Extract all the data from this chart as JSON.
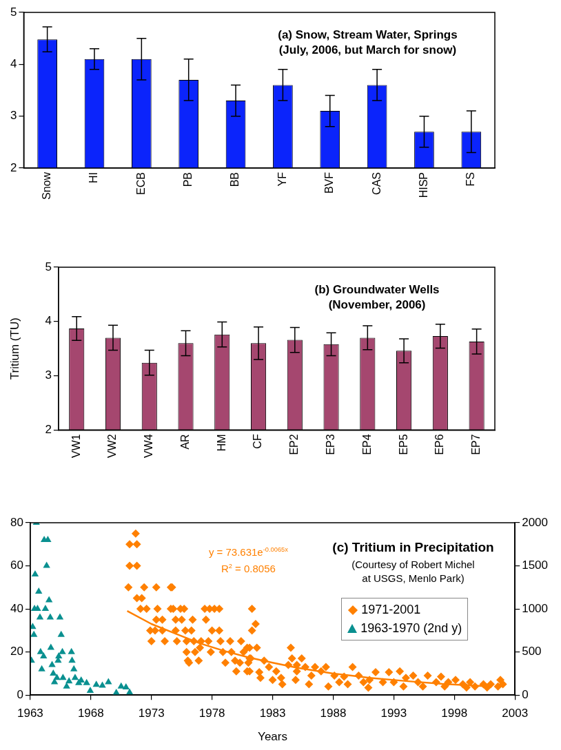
{
  "chart_data": [
    {
      "type": "bar",
      "title": "(a) Snow, Stream Water, Springs\n(July, 2006, but March for snow)",
      "categories": [
        "Snow",
        "HI",
        "ECB",
        "PB",
        "BB",
        "YF",
        "BVF",
        "CAS",
        "HISP",
        "FS"
      ],
      "values": [
        4.48,
        4.1,
        4.1,
        3.7,
        3.3,
        3.6,
        3.1,
        3.6,
        2.7,
        2.7
      ],
      "errors": [
        0.24,
        0.2,
        0.4,
        0.4,
        0.3,
        0.3,
        0.3,
        0.3,
        0.3,
        0.4
      ],
      "color": "#0b24fb",
      "ylim": [
        2,
        5
      ],
      "yticks": [
        2,
        3,
        4,
        5
      ],
      "grid": false
    },
    {
      "type": "bar",
      "title": "(b) Groundwater Wells\n(November, 2006)",
      "ylabel": "Tritium (TU)",
      "categories": [
        "VW1",
        "VW2",
        "VW4",
        "AR",
        "HM",
        "CF",
        "EP2",
        "EP3",
        "EP4",
        "EP5",
        "EP6",
        "EP7"
      ],
      "values": [
        3.87,
        3.7,
        3.24,
        3.6,
        3.76,
        3.6,
        3.66,
        3.58,
        3.7,
        3.46,
        3.73,
        3.63
      ],
      "errors": [
        0.22,
        0.23,
        0.23,
        0.23,
        0.23,
        0.3,
        0.23,
        0.21,
        0.22,
        0.22,
        0.22,
        0.23
      ],
      "color": "#a5476f",
      "ylim": [
        2,
        5
      ],
      "yticks": [
        2,
        3,
        4,
        5
      ],
      "grid": false
    },
    {
      "type": "scatter",
      "title": "(c) Tritium in Precipitation",
      "subtitle": "(Courtesy of Robert Michel\nat USGS, Menlo Park)",
      "xlabel": "Years",
      "annotations": [
        "y = 73.631e$^{-0.0065x}$",
        "R$^{2}$ = 0.8056"
      ],
      "xlim": [
        1963,
        2003
      ],
      "xticks": [
        1963,
        1968,
        1973,
        1978,
        1983,
        1988,
        1993,
        1998,
        2003
      ],
      "ylim": [
        0,
        80
      ],
      "yticks": [
        0,
        20,
        40,
        60,
        80
      ],
      "y2lim": [
        0,
        2000
      ],
      "y2ticks": [
        0,
        500,
        1000,
        1500,
        2000
      ],
      "grid": false,
      "legend": "right",
      "series": [
        {
          "name": "1971-2001",
          "color": "#ff8000",
          "marker": "diamond",
          "x": [
            1971.1,
            1971.2,
            1971.2,
            1971.7,
            1971.8,
            1971.8,
            1971.8,
            1972.2,
            1972.1,
            1972.6,
            1972.4,
            1972.9,
            1973.0,
            1973.3,
            1973.4,
            1973.4,
            1973.5,
            1973.9,
            1973.9,
            1974.1,
            1974.6,
            1974.6,
            1974.7,
            1974.8,
            1975.0,
            1975.0,
            1975.1,
            1975.4,
            1975.7,
            1975.5,
            1975.8,
            1975.9,
            1975.9,
            1976.0,
            1976.1,
            1976.3,
            1976.4,
            1976.5,
            1976.6,
            1976.9,
            1977.0,
            1977.1,
            1977.4,
            1977.5,
            1977.7,
            1977.9,
            1977.8,
            1978.2,
            1978.6,
            1978.6,
            1978.0,
            1978.7,
            1978.9,
            1979.1,
            1979.5,
            1979.6,
            1979.9,
            1980.0,
            1980.3,
            1980.4,
            1980.6,
            1980.9,
            1980.9,
            1981.0,
            1981.2,
            1981.3,
            1981.3,
            1981.6,
            1981.1,
            1981.7,
            1981.1,
            1982.3,
            1981.1,
            1981.9,
            1982.0,
            1982.7,
            1983.0,
            1983.3,
            1983.7,
            1983.8,
            1984.5,
            1984.6,
            1985.4,
            1984.3,
            1985.0,
            1985.0,
            1984.9,
            1985.7,
            1986.0,
            1986.2,
            1986.5,
            1987.0,
            1987.4,
            1987.6,
            1988.1,
            1988.5,
            1988.9,
            1989.2,
            1989.6,
            1990.1,
            1990.5,
            1990.9,
            1991.0,
            1991.5,
            1992.1,
            1992.6,
            1993.0,
            1993.5,
            1993.8,
            1994.0,
            1994.6,
            1995.0,
            1995.4,
            1995.8,
            1996.5,
            1996.9,
            1997.2,
            1997.5,
            1998.1,
            1998.7,
            1999.0,
            1999.3,
            1999.7,
            2000.4,
            2000.7,
            2001.0,
            2001.6,
            2001.8,
            2002.0
          ],
          "values": [
            50,
            60,
            70,
            75,
            60,
            70,
            45,
            45,
            40,
            40,
            50,
            30,
            25,
            30,
            50,
            35,
            40,
            35,
            30,
            25,
            50,
            40,
            50,
            40,
            35,
            30,
            25,
            40,
            40,
            35,
            30,
            25,
            20,
            16,
            15,
            30,
            35,
            25,
            20,
            16,
            22,
            25,
            40,
            35,
            25,
            20,
            40,
            40,
            40,
            30,
            30,
            25,
            20,
            15,
            25,
            20,
            16,
            11,
            15,
            25,
            20,
            22,
            11,
            15,
            17,
            40,
            30,
            33,
            22,
            22,
            17,
            16,
            11,
            10.6,
            8,
            13,
            7,
            11,
            8,
            5,
            22,
            17,
            17,
            14,
            11,
            14,
            7,
            13,
            5,
            9,
            13,
            11,
            13,
            4,
            9,
            6,
            8.5,
            5,
            13,
            9,
            6,
            3.4,
            7,
            10.6,
            6,
            10.6,
            6,
            11,
            4,
            8,
            9,
            6,
            4,
            9,
            6,
            8.5,
            4,
            6,
            7,
            5,
            3.5,
            6,
            4,
            5,
            3.5,
            5,
            4,
            7,
            5
          ]
        },
        {
          "name": "1963-1970 (2nd y)",
          "color": "#0a9090",
          "marker": "triangle",
          "axis": "y2",
          "x": [
            1963.1,
            1963.2,
            1963.3,
            1963.4,
            1963.5,
            1963.35,
            1963.6,
            1963.7,
            1963.8,
            1963.85,
            1963.95,
            1964.1,
            1964.15,
            1964.45,
            1964.25,
            1964.35,
            1964.55,
            1964.65,
            1964.7,
            1964.8,
            1964.9,
            1965.0,
            1965.2,
            1965.3,
            1965.35,
            1965.45,
            1965.55,
            1965.65,
            1965.7,
            1966.0,
            1966.2,
            1966.4,
            1966.45,
            1966.6,
            1966.7,
            1967.0,
            1967.2,
            1967.65,
            1967.95,
            1968.45,
            1968.95,
            1969.45,
            1970.1,
            1970.5,
            1970.9,
            1971.2
          ],
          "values": [
            400,
            790,
            700,
            1400,
            2000,
            1000,
            1000,
            1200,
            900,
            500,
            300,
            450,
            1800,
            1800,
            1000,
            1500,
            1100,
            900,
            550,
            350,
            250,
            150,
            200,
            400,
            450,
            900,
            700,
            500,
            200,
            100,
            160,
            500,
            400,
            300,
            200,
            140,
            170,
            140,
            50,
            120,
            110,
            150,
            25,
            100,
            90,
            30
          ]
        },
        {
          "type": "line",
          "color": "#ff8000",
          "marker": "none",
          "x": [
            1971,
            1973,
            1975,
            1977,
            1979,
            1981,
            1983,
            1985,
            1988,
            1991,
            1994,
            1997,
            2001
          ],
          "values": [
            39,
            33,
            28.5,
            24,
            20.5,
            17.5,
            15,
            12.7,
            10,
            8,
            6.5,
            5.2,
            4
          ]
        }
      ]
    }
  ]
}
